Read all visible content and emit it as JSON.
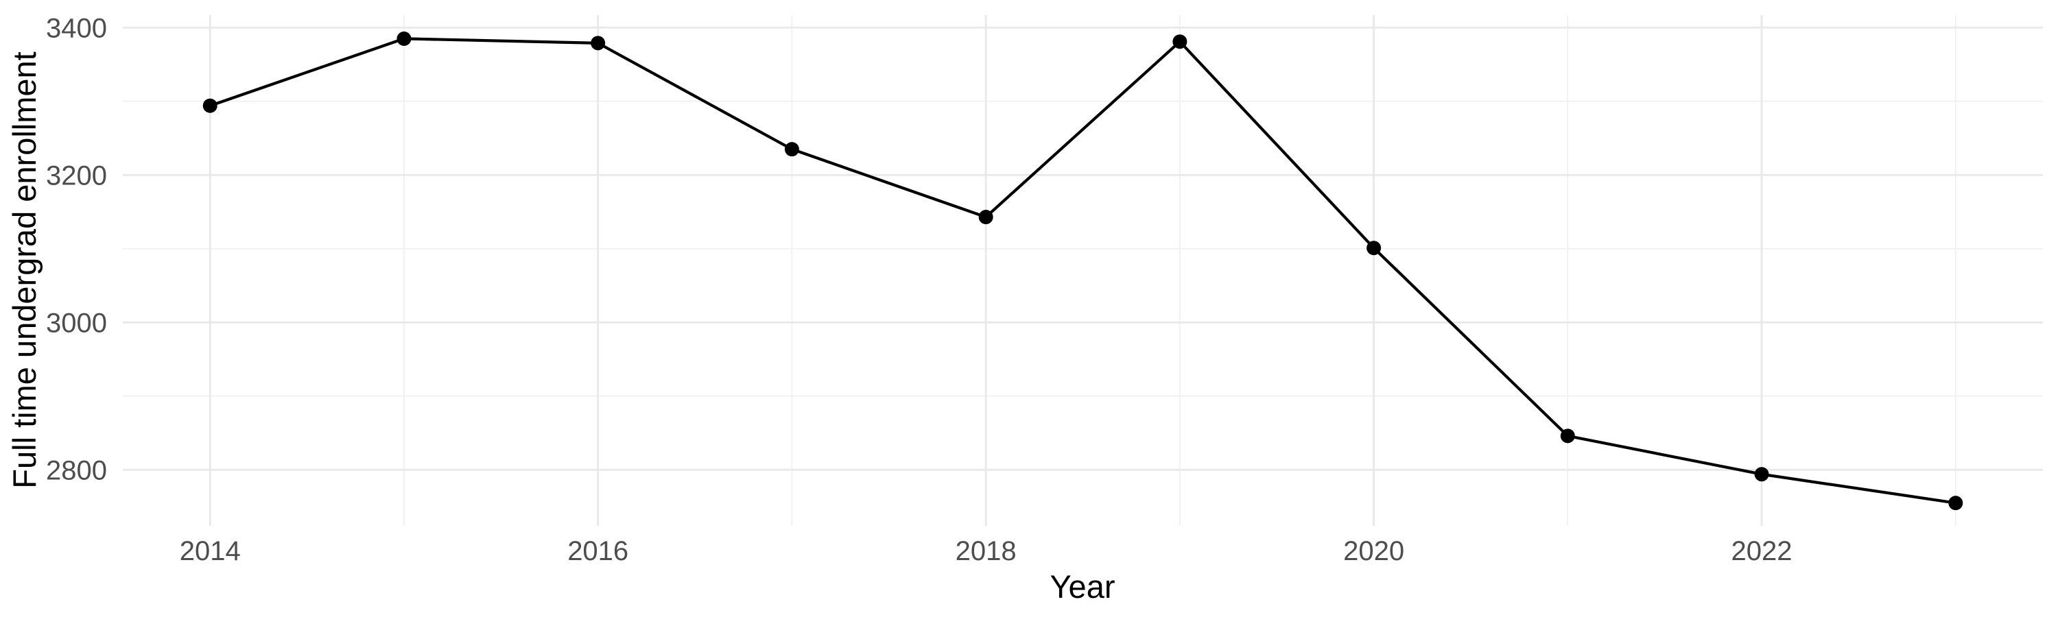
{
  "chart_data": {
    "type": "line",
    "title": "",
    "xlabel": "Year",
    "ylabel": "Full time undergrad enrollment",
    "x": [
      2014,
      2015,
      2016,
      2017,
      2018,
      2019,
      2020,
      2021,
      2022,
      2023
    ],
    "series": [
      {
        "name": "Full time undergrad enrollment",
        "values": [
          3294,
          3385,
          3379,
          3235,
          3143,
          3381,
          3101,
          2846,
          2794,
          2755
        ]
      }
    ],
    "x_tick_labels": [
      "2014",
      "2016",
      "2018",
      "2020",
      "2022"
    ],
    "x_ticks": [
      2014,
      2016,
      2018,
      2020,
      2022
    ],
    "x_minor_ticks": [
      2015,
      2017,
      2019,
      2021,
      2023
    ],
    "y_tick_labels": [
      "2800",
      "3000",
      "3200",
      "3400"
    ],
    "y_ticks": [
      2800,
      3000,
      3200,
      3400
    ],
    "y_minor_ticks": [
      2900,
      3100,
      3300
    ],
    "xlim": [
      2013.55,
      2023.45
    ],
    "ylim": [
      2724,
      3417
    ],
    "grid": "on",
    "legend_position": "none",
    "colors": {
      "line": "#000000",
      "point": "#000000",
      "grid_major": "#E8E8E8",
      "grid_minor": "#F0F0F0",
      "tick_text": "#4D4D4D",
      "axis_title_text": "#000000",
      "background": "#FFFFFF"
    }
  }
}
